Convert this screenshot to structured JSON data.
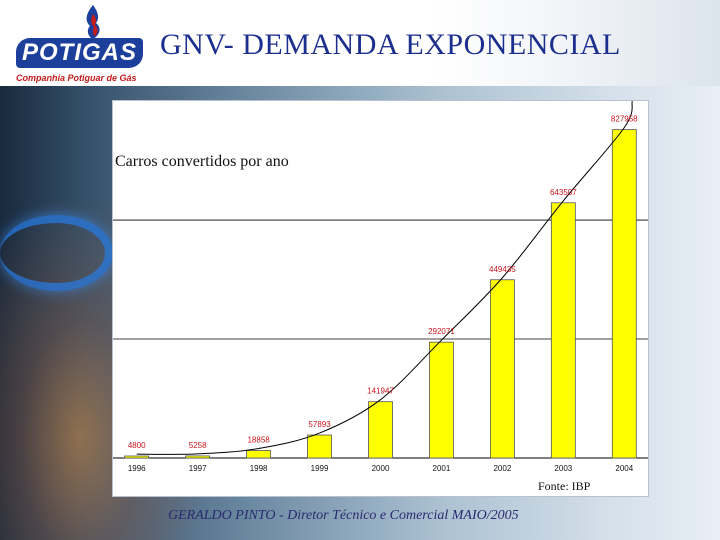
{
  "header": {
    "logo_text": "POTIGAS",
    "logo_subtitle": "Companhia Potiguar de Gás",
    "title": "GNV- DEMANDA EXPONENCIAL"
  },
  "colors": {
    "bar_fill": "#ffff00",
    "bar_stroke": "#555555",
    "value_label": "#c8141e",
    "title_blue": "#1c2f8e",
    "curve": "#000000"
  },
  "chart_data": {
    "type": "bar",
    "title": "Carros convertidos por ano",
    "source": "Fonte: IBP",
    "categories": [
      "1996",
      "1997",
      "1998",
      "1999",
      "2000",
      "2001",
      "2002",
      "2003",
      "2004"
    ],
    "values": [
      4800,
      5258,
      18858,
      57893,
      141947,
      292071,
      449435,
      643507,
      827958
    ],
    "value_labels": [
      "4800",
      "5258",
      "18858",
      "57893",
      "141947",
      "292071",
      "449435",
      "643507",
      "827958"
    ],
    "ylim": [
      0,
      880000
    ],
    "gridlines": [
      300000,
      600000
    ],
    "trendline": "exponential",
    "legend": "none"
  },
  "footer": {
    "credit": "GERALDO PINTO - Diretor Técnico e Comercial MAIO/2005"
  }
}
